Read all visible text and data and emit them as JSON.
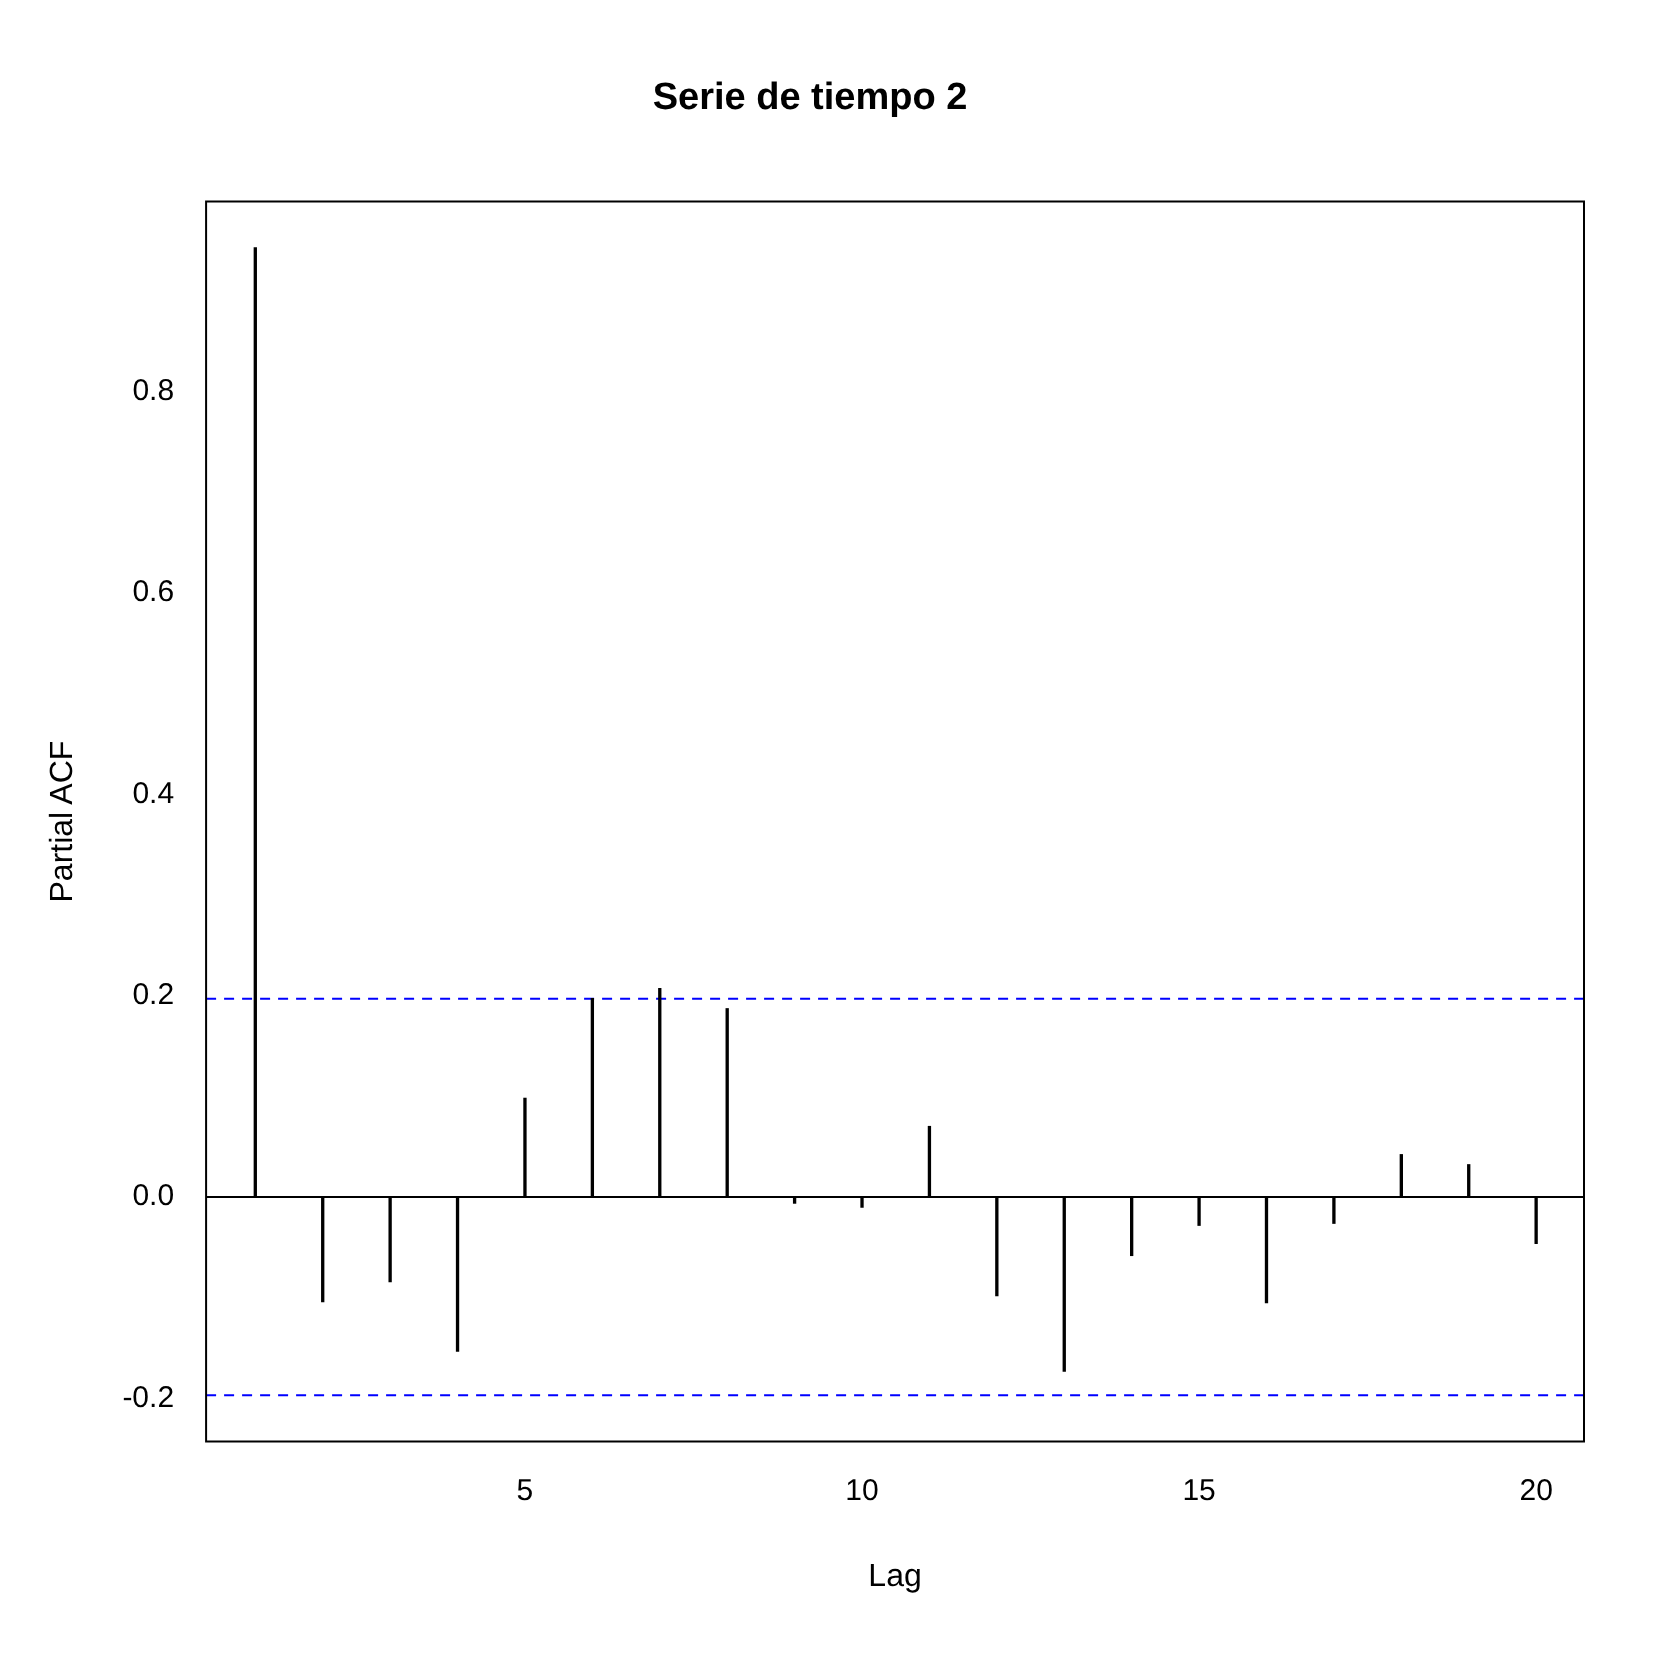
{
  "chart_data": {
    "type": "bar",
    "title": "Serie de tiempo 2",
    "xlabel": "Lag",
    "ylabel": "Partial ACF",
    "x": [
      1,
      2,
      3,
      4,
      5,
      6,
      7,
      8,
      9,
      10,
      11,
      12,
      13,
      14,
      15,
      16,
      17,
      18,
      19,
      20
    ],
    "values": [
      0.943,
      -0.104,
      -0.084,
      -0.153,
      0.098,
      0.197,
      0.207,
      0.187,
      -0.006,
      -0.01,
      0.07,
      -0.098,
      -0.173,
      -0.058,
      -0.028,
      -0.105,
      -0.026,
      0.042,
      0.032,
      -0.046
    ],
    "color": "#000000",
    "xlim": [
      0.27,
      20.71
    ],
    "xticks": [
      5,
      10,
      15,
      20
    ],
    "ylim": [
      -0.243,
      0.989
    ],
    "yticks": [
      {
        "value": -0.2,
        "label": "-0.2"
      },
      {
        "value": 0,
        "label": "0.0"
      },
      {
        "value": 0.2,
        "label": "0.2"
      },
      {
        "value": 0.4,
        "label": "0.4"
      },
      {
        "value": 0.6,
        "label": "0.6"
      },
      {
        "value": 0.8,
        "label": "0.8"
      }
    ],
    "ref_lines": [
      {
        "axis": "y",
        "value": 0,
        "color": "#000000",
        "line_style": "solid"
      },
      {
        "axis": "y",
        "value": 0.197,
        "color": "#0000ff",
        "line_style": "dashed"
      },
      {
        "axis": "y",
        "value": -0.197,
        "color": "#0000ff",
        "line_style": "dashed"
      }
    ],
    "grid": false,
    "legend": false
  }
}
